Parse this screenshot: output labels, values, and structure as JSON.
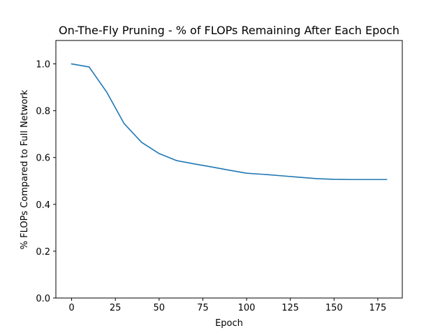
{
  "chart_data": {
    "type": "line",
    "title": "On-The-Fly Pruning - % of FLOPs Remaining After Each Epoch",
    "xlabel": "Epoch",
    "ylabel": "% FLOPs Compared to Full Network",
    "xlim": [
      -9,
      189
    ],
    "ylim": [
      0.0,
      1.1
    ],
    "x_ticks": [
      0,
      25,
      50,
      75,
      100,
      125,
      150,
      175
    ],
    "y_ticks": [
      0.0,
      0.2,
      0.4,
      0.6,
      0.8,
      1.0
    ],
    "x_tick_labels": [
      "0",
      "25",
      "50",
      "75",
      "100",
      "125",
      "150",
      "175"
    ],
    "y_tick_labels": [
      "0.0",
      "0.2",
      "0.4",
      "0.6",
      "0.8",
      "1.0"
    ],
    "grid": false,
    "legend": "none",
    "series": [
      {
        "color": "#1f77b4",
        "x": [
          0,
          10,
          20,
          30,
          40,
          50,
          60,
          70,
          80,
          90,
          100,
          110,
          120,
          130,
          140,
          150,
          160,
          170,
          180
        ],
        "values": [
          1.0,
          0.987,
          0.88,
          0.745,
          0.665,
          0.617,
          0.587,
          0.573,
          0.56,
          0.546,
          0.533,
          0.528,
          0.522,
          0.516,
          0.51,
          0.507,
          0.506,
          0.506,
          0.506
        ]
      }
    ]
  }
}
